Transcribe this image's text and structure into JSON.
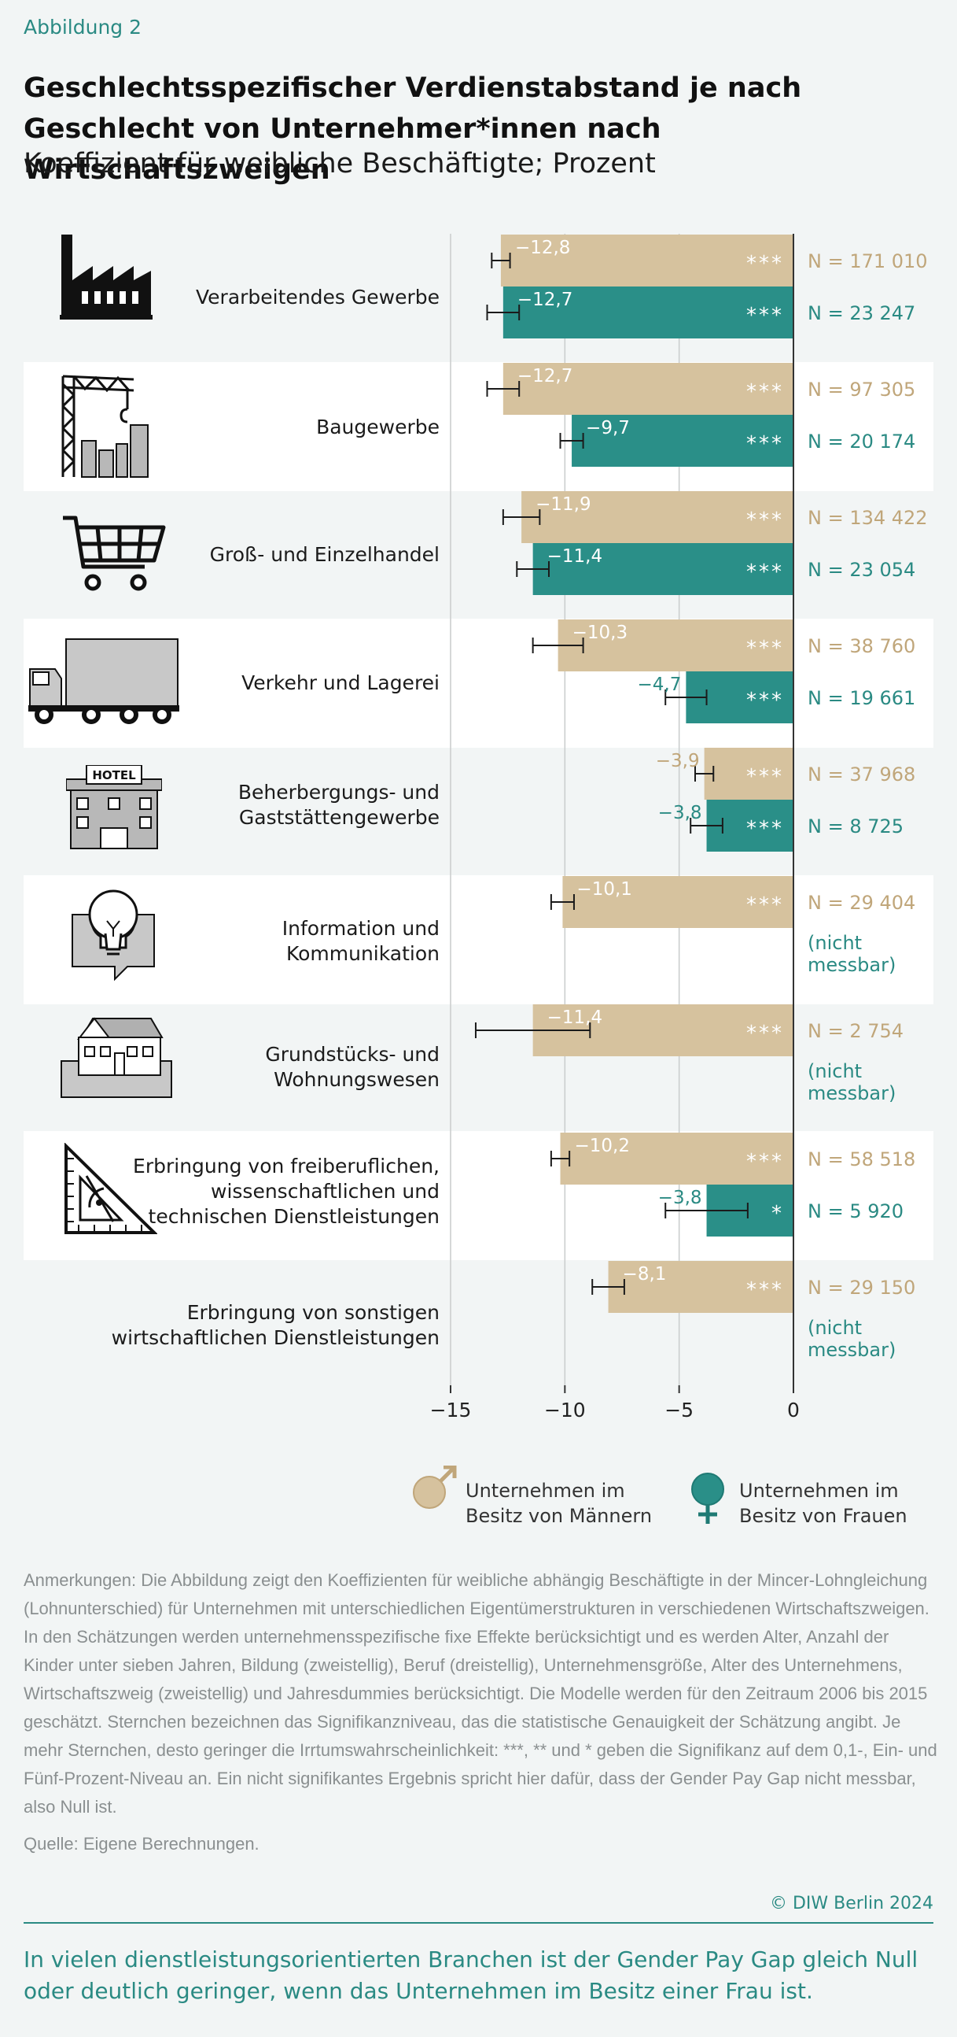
{
  "figure_label": "Abbildung 2",
  "title": "Geschlechtsspezifischer Verdienstabstand je nach Geschlecht von Unternehmer*innen nach Wirtschaftszweigen",
  "subtitle": "Koeffizient für weibliche Beschäftigte; Prozent",
  "colors": {
    "men": "#d6c29e",
    "women": "#2a8f88",
    "men_text": "#c0a67a",
    "women_text": "#2a8a83",
    "band": "#ffffff",
    "background": "#f2f5f5"
  },
  "categories": [
    {
      "label": "Verarbeitendes Gewerbe",
      "icon": "factory-icon"
    },
    {
      "label": "Baugewerbe",
      "icon": "crane-icon"
    },
    {
      "label": "Groß- und Einzelhandel",
      "icon": "shopping-cart-icon"
    },
    {
      "label": "Verkehr und Lagerei",
      "icon": "truck-icon"
    },
    {
      "label": "Beherbergungs- und\nGaststättengewerbe",
      "icon": "hotel-icon",
      "icon_text": "HOTEL"
    },
    {
      "label": "Information und\nKommunikation",
      "icon": "lightbulb-chat-icon"
    },
    {
      "label": "Grundstücks- und\nWohnungswesen",
      "icon": "house-icon"
    },
    {
      "label": "Erbringung von freiberuflichen,\nwissenschaftlichen und\ntechnischen Dienstleistungen",
      "icon": "set-square-icon"
    },
    {
      "label": "Erbringung von sonstigen\nwirtschaftlichen Dienstleistungen",
      "icon": ""
    }
  ],
  "chart_data": {
    "type": "bar",
    "orientation": "horizontal",
    "xlim": [
      -15,
      0
    ],
    "x_ticks": [
      -15,
      -10,
      -5,
      0
    ],
    "x_tick_labels": [
      "−15",
      "−10",
      "−5",
      "0"
    ],
    "categories": [
      "Verarbeitendes Gewerbe",
      "Baugewerbe",
      "Groß- und Einzelhandel",
      "Verkehr und Lagerei",
      "Beherbergungs- und Gaststättengewerbe",
      "Information und Kommunikation",
      "Grundstücks- und Wohnungswesen",
      "Erbringung von freiberuflichen, wissenschaftlichen und technischen Dienstleistungen",
      "Erbringung von sonstigen wirtschaftlichen Dienstleistungen"
    ],
    "series": [
      {
        "name": "Unternehmen im Besitz von Männern",
        "values": [
          -12.8,
          -12.7,
          -11.9,
          -10.3,
          -3.9,
          -10.1,
          -11.4,
          -10.2,
          -8.1
        ],
        "value_labels": [
          "−12,8",
          "−12,7",
          "−11,9",
          "−10,3",
          "−3,9",
          "−10,1",
          "−11,4",
          "−10,2",
          "−8,1"
        ],
        "ci": [
          [
            -13.2,
            -12.4
          ],
          [
            -13.4,
            -12.0
          ],
          [
            -12.7,
            -11.1
          ],
          [
            -11.4,
            -9.2
          ],
          [
            -4.3,
            -3.5
          ],
          [
            -10.6,
            -9.6
          ],
          [
            -13.9,
            -8.9
          ],
          [
            -10.6,
            -9.8
          ],
          [
            -8.8,
            -7.4
          ]
        ],
        "significance": [
          "***",
          "***",
          "***",
          "***",
          "***",
          "***",
          "***",
          "***",
          "***"
        ],
        "n": [
          "N = 171 010",
          "N = 97 305",
          "N = 134 422",
          "N = 38 760",
          "N = 37 968",
          "N = 29 404",
          "N = 2 754",
          "N = 58 518",
          "N = 29 150"
        ]
      },
      {
        "name": "Unternehmen im Besitz von Frauen",
        "values": [
          -12.7,
          -9.7,
          -11.4,
          -4.7,
          -3.8,
          null,
          null,
          -3.8,
          null
        ],
        "value_labels": [
          "−12,7",
          "−9,7",
          "−11,4",
          "−4,7",
          "−3,8",
          "",
          "",
          "−3,8",
          ""
        ],
        "ci": [
          [
            -13.4,
            -12.0
          ],
          [
            -10.2,
            -9.2
          ],
          [
            -12.1,
            -10.7
          ],
          [
            -5.6,
            -3.8
          ],
          [
            -4.5,
            -3.1
          ],
          null,
          null,
          [
            -5.6,
            -2.0
          ],
          null
        ],
        "significance": [
          "***",
          "***",
          "***",
          "***",
          "***",
          "",
          "",
          "*",
          ""
        ],
        "n": [
          "N = 23 247",
          "N = 20 174",
          "N = 23 054",
          "N = 19 661",
          "N = 8 725",
          "(nicht\nmessbar)",
          "(nicht\nmessbar)",
          "N = 5 920",
          "(nicht\nmessbar)"
        ]
      }
    ]
  },
  "legend": [
    {
      "label": "Unternehmen im\nBesitz von Männern",
      "icon": "male-symbol-icon"
    },
    {
      "label": "Unternehmen im\nBesitz von Frauen",
      "icon": "female-symbol-icon"
    }
  ],
  "notes": "Anmerkungen: Die Abbildung zeigt den Koeffizienten für weibliche abhängig Beschäftigte in der Mincer-Lohngleichung (Lohnunterschied) für Unternehmen mit unterschiedlichen Eigentümerstrukturen in verschiedenen Wirtschaftszweigen. In den Schätzungen werden unternehmensspezifische fixe Effekte berücksichtigt und es werden Alter, Anzahl der Kinder unter sieben Jahren, Bildung (zweistellig), Beruf (dreistellig), Unternehmensgröße, Alter des Unternehmens, Wirtschaftszweig (zweistellig) und Jahresdummies berücksichtigt. Die Modelle werden für den Zeitraum 2006 bis 2015 geschätzt. Sternchen bezeichnen das Signifikanzniveau, das die statistische Genauigkeit der Schätzung angibt. Je mehr Sternchen, desto geringer die Irrtumswahrscheinlichkeit: ***, ** und * geben die Signifikanz auf dem 0,1-, Ein- und Fünf-Prozent-Niveau an. Ein nicht signifikantes Ergebnis spricht hier dafür, dass der Gender Pay Gap nicht messbar, also Null ist.",
  "source": "Quelle: Eigene Berechnungen.",
  "copyright": "© DIW Berlin 2024",
  "bottom_text": "In vielen dienstleistungsorientierten Branchen ist der Gender Pay Gap gleich Null oder deutlich geringer, wenn das Unternehmen im Besitz einer Frau ist."
}
